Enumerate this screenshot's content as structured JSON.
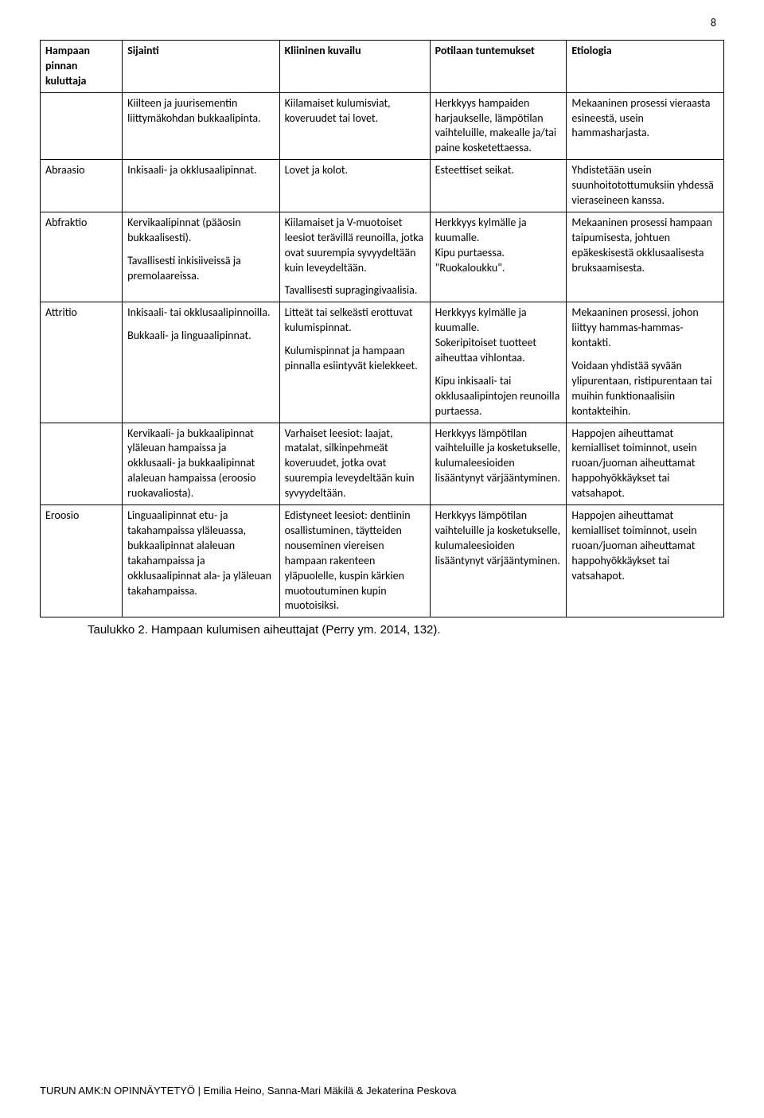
{
  "page_number": "8",
  "header": {
    "col1": "Hampaan pinnan kuluttaja",
    "col2": "Sijainti",
    "col3": "Kliininen kuvailu",
    "col4": "Potilaan tuntemukset",
    "col5": "Etiologia"
  },
  "rows": [
    {
      "c1": "",
      "c2": [
        {
          "t": "Kiilteen ja juurisementin liittymäkohdan bukkaalipinta."
        }
      ],
      "c3": [
        {
          "t": "Kiilamaiset kulumisviat, koveruudet tai lovet."
        }
      ],
      "c4": [
        {
          "t": "Herkkyys hampaiden harjaukselle, lämpötilan vaihteluille, makealle ja/tai paine kosketettaessa."
        }
      ],
      "c5": [
        {
          "t": "Mekaaninen prosessi vieraasta esineestä, usein hammasharjasta."
        }
      ]
    },
    {
      "c1": "Abraasio",
      "c2": [
        {
          "t": "Inkisaali- ja okklusaalipinnat."
        }
      ],
      "c3": [
        {
          "t": "Lovet ja kolot."
        }
      ],
      "c4": [
        {
          "t": "Esteettiset seikat."
        }
      ],
      "c5": [
        {
          "t": "Yhdistetään usein suunhoitotottumuksiin yhdessä vieraseineen kanssa."
        }
      ]
    },
    {
      "c1": "Abfraktio",
      "c2": [
        {
          "t": "Kervikaalipinnat (pääosin bukkaalisesti)."
        },
        {
          "t": "Tavallisesti inkisiiveissä ja premolaareissa."
        }
      ],
      "c3": [
        {
          "t": "Kiilamaiset ja V-muotoiset leesiot terävillä reunoilla, jotka ovat suurempia syvyydeltään kuin leveydeltään."
        },
        {
          "t": "Tavallisesti supragingivaalisia."
        }
      ],
      "c4": [
        {
          "t": "Herkkyys kylmälle ja kuumalle.\nKipu purtaessa.\n\"Ruokaloukku\"."
        }
      ],
      "c5": [
        {
          "t": "Mekaaninen prosessi hampaan taipumisesta, johtuen epäkeskisestä okklusaalisesta bruksaamisesta."
        }
      ]
    },
    {
      "c1": "Attritio",
      "c2": [
        {
          "t": "Inkisaali- tai okklusaalipinnoilla."
        },
        {
          "t": "Bukkaali- ja linguaalipinnat."
        }
      ],
      "c3": [
        {
          "t": "Litteät tai selkeästi erottuvat kulumispinnat."
        },
        {
          "t": "Kulumispinnat ja hampaan pinnalla esiintyvät kielekkeet."
        }
      ],
      "c4": [
        {
          "t": "Herkkyys kylmälle ja kuumalle.\nSokeripitoiset tuotteet aiheuttaa vihlontaa."
        },
        {
          "t": "Kipu inkisaali- tai okklusaalipintojen reunoilla purtaessa."
        }
      ],
      "c5": [
        {
          "t": "Mekaaninen prosessi, johon liittyy hammas-hammas-kontakti."
        },
        {
          "t": "Voidaan yhdistää syvään ylipurentaan, ristipurentaan tai muihin funktionaalisiin kontakteihin."
        }
      ]
    },
    {
      "c1": "",
      "c2": [
        {
          "t": "Kervikaali- ja bukkaalipinnat yläleuan hampaissa ja okklusaali- ja bukkaalipinnat alaleuan hampaissa (eroosio ruokavaliosta)."
        }
      ],
      "c3": [
        {
          "t": "Varhaiset leesiot: laajat, matalat, silkinpehmeät koveruudet, jotka ovat suurempia leveydeltään kuin syvyydeltään."
        }
      ],
      "c4": [
        {
          "t": "Herkkyys lämpötilan vaihteluille ja kosketukselle, kulumaleesioiden lisääntynyt värjääntyminen."
        }
      ],
      "c5": [
        {
          "t": "Happojen aiheuttamat kemialliset toiminnot, usein ruoan/juoman aiheuttamat happohyökkäykset tai vatsahapot."
        }
      ]
    },
    {
      "c1": "Eroosio",
      "c2": [
        {
          "t": "Linguaalipinnat etu- ja takahampaissa yläleuassa, bukkaalipinnat alaleuan takahampaissa ja okklusaalipinnat ala- ja yläleuan takahampaissa."
        }
      ],
      "c3": [
        {
          "t": "Edistyneet leesiot: dentiinin osallistuminen, täytteiden nouseminen viereisen hampaan rakenteen yläpuolelle, kuspin kärkien muotoutuminen kupin muotoisiksi."
        }
      ],
      "c4": [
        {
          "t": "Herkkyys lämpötilan vaihteluille ja kosketukselle, kulumaleesioiden lisääntynyt värjääntyminen."
        }
      ],
      "c5": [
        {
          "t": "Happojen aiheuttamat kemialliset toiminnot, usein ruoan/juoman aiheuttamat happohyökkäykset tai vatsahapot."
        }
      ]
    }
  ],
  "caption": "Taulukko 2. Hampaan kulumisen aiheuttajat (Perry ym. 2014, 132).",
  "footer": "TURUN AMK:N OPINNÄYTETYÖ | Emilia Heino, Sanna-Mari Mäkilä & Jekaterina Peskova"
}
